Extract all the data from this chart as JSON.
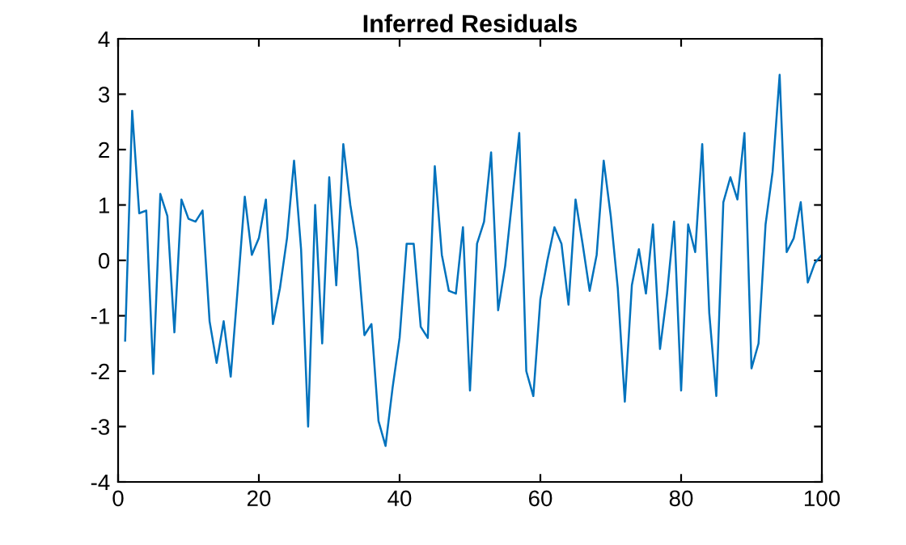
{
  "chart_data": {
    "type": "line",
    "title": "Inferred Residuals",
    "x": [
      1,
      2,
      3,
      4,
      5,
      6,
      7,
      8,
      9,
      10,
      11,
      12,
      13,
      14,
      15,
      16,
      17,
      18,
      19,
      20,
      21,
      22,
      23,
      24,
      25,
      26,
      27,
      28,
      29,
      30,
      31,
      32,
      33,
      34,
      35,
      36,
      37,
      38,
      39,
      40,
      41,
      42,
      43,
      44,
      45,
      46,
      47,
      48,
      49,
      50,
      51,
      52,
      53,
      54,
      55,
      56,
      57,
      58,
      59,
      60,
      61,
      62,
      63,
      64,
      65,
      66,
      67,
      68,
      69,
      70,
      71,
      72,
      73,
      74,
      75,
      76,
      77,
      78,
      79,
      80,
      81,
      82,
      83,
      84,
      85,
      86,
      87,
      88,
      89,
      90,
      91,
      92,
      93,
      94,
      95,
      96,
      97,
      98,
      99,
      100
    ],
    "series": [
      {
        "color": "#0072bd",
        "values": [
          -1.45,
          2.7,
          0.85,
          0.9,
          -2.05,
          1.2,
          0.8,
          -1.3,
          1.1,
          0.75,
          0.7,
          0.9,
          -1.1,
          -1.85,
          -1.1,
          -2.1,
          -0.5,
          1.15,
          0.1,
          0.4,
          1.1,
          -1.15,
          -0.5,
          0.4,
          1.8,
          0.2,
          -3.0,
          1.0,
          -1.5,
          1.5,
          -0.45,
          2.1,
          1.0,
          0.2,
          -1.35,
          -1.15,
          -2.9,
          -3.35,
          -2.3,
          -1.4,
          0.3,
          0.3,
          -1.2,
          -1.4,
          1.7,
          0.1,
          -0.55,
          -0.6,
          0.6,
          -2.35,
          0.3,
          0.7,
          1.95,
          -0.9,
          -0.1,
          1.1,
          2.3,
          -2.0,
          -2.45,
          -0.7,
          0.0,
          0.6,
          0.3,
          -0.8,
          1.1,
          0.3,
          -0.55,
          0.1,
          1.8,
          0.8,
          -0.5,
          -2.55,
          -0.45,
          0.2,
          -0.6,
          0.65,
          -1.6,
          -0.6,
          0.7,
          -2.35,
          0.65,
          0.15,
          2.1,
          -0.95,
          -2.45,
          1.05,
          1.5,
          1.1,
          2.3,
          -1.95,
          -1.5,
          0.65,
          1.6,
          3.35,
          0.15,
          0.4,
          1.05,
          -0.4,
          -0.05,
          0.1
        ]
      }
    ],
    "xlim": [
      0,
      100
    ],
    "xticks": [
      0,
      20,
      40,
      60,
      80,
      100
    ],
    "ylim": [
      -4,
      4
    ],
    "yticks": [
      -4,
      -3,
      -2,
      -1,
      0,
      1,
      2,
      3,
      4
    ],
    "grid": false,
    "legend": false,
    "marker": "none",
    "line_style": "solid"
  }
}
